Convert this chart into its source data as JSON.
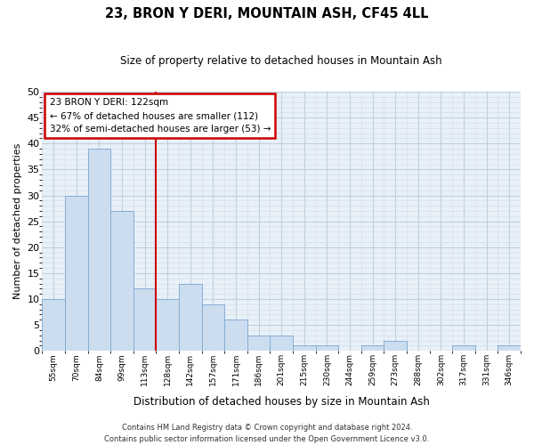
{
  "title": "23, BRON Y DERI, MOUNTAIN ASH, CF45 4LL",
  "subtitle": "Size of property relative to detached houses in Mountain Ash",
  "xlabel": "Distribution of detached houses by size in Mountain Ash",
  "ylabel": "Number of detached properties",
  "bin_labels": [
    "55sqm",
    "70sqm",
    "84sqm",
    "99sqm",
    "113sqm",
    "128sqm",
    "142sqm",
    "157sqm",
    "171sqm",
    "186sqm",
    "201sqm",
    "215sqm",
    "230sqm",
    "244sqm",
    "259sqm",
    "273sqm",
    "288sqm",
    "302sqm",
    "317sqm",
    "331sqm",
    "346sqm"
  ],
  "bar_heights": [
    10,
    30,
    39,
    27,
    12,
    10,
    13,
    9,
    6,
    3,
    3,
    1,
    1,
    0,
    1,
    2,
    0,
    0,
    1,
    0,
    1
  ],
  "bar_color": "#ccddf0",
  "bar_edge_color": "#85aed4",
  "vline_x_idx": 5,
  "vline_color": "#cc0000",
  "ylim": [
    0,
    50
  ],
  "yticks": [
    0,
    5,
    10,
    15,
    20,
    25,
    30,
    35,
    40,
    45,
    50
  ],
  "annotation_title": "23 BRON Y DERI: 122sqm",
  "annotation_line1": "← 67% of detached houses are smaller (112)",
  "annotation_line2": "32% of semi-detached houses are larger (53) →",
  "annotation_box_color": "#ffffff",
  "annotation_box_edge": "#cc0000",
  "footer_line1": "Contains HM Land Registry data © Crown copyright and database right 2024.",
  "footer_line2": "Contains public sector information licensed under the Open Government Licence v3.0.",
  "fig_background": "#ffffff",
  "plot_background": "#e8f0f8",
  "grid_color": "#c0d0e0",
  "minor_grid_color": "#d0dcea"
}
